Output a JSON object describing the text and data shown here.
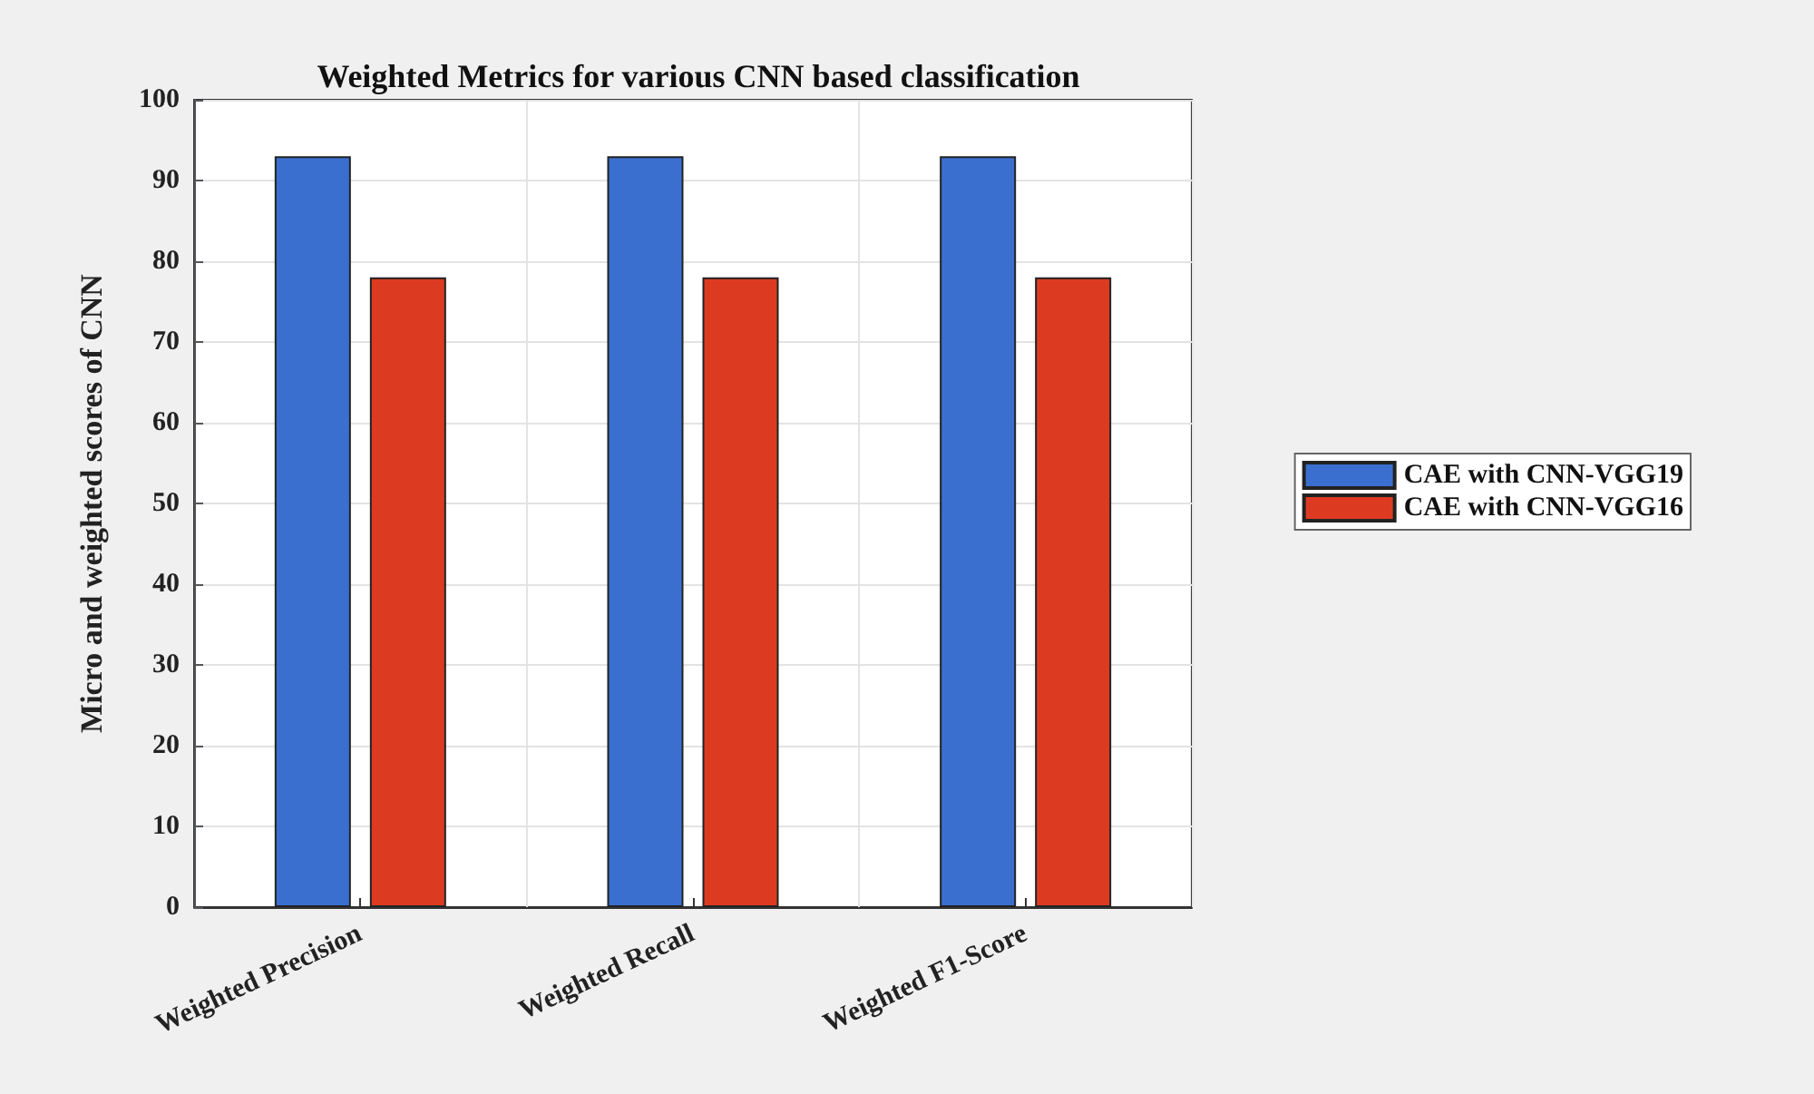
{
  "chart_data": {
    "type": "bar",
    "title": "Weighted Metrics for various CNN based classification",
    "ylabel": "Micro and weighted scores of CNN",
    "categories": [
      "Weighted Precision",
      "Weighted Recall",
      "Weighted F1-Score"
    ],
    "series": [
      {
        "name": "CAE with CNN-VGG19",
        "color": "#3b6fcf",
        "values": [
          93,
          93,
          93
        ]
      },
      {
        "name": "CAE with CNN-VGG16",
        "color": "#dc3b22",
        "values": [
          78,
          78,
          78
        ]
      }
    ],
    "ylim": [
      0,
      100
    ],
    "yticks": [
      0,
      10,
      20,
      30,
      40,
      50,
      60,
      70,
      80,
      90,
      100
    ],
    "grid": true,
    "legend": "right"
  }
}
